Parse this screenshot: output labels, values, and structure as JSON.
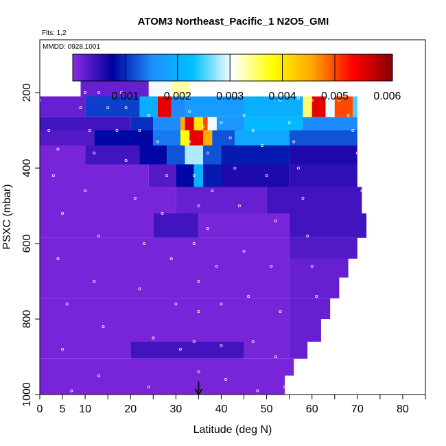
{
  "chart_data": {
    "type": "heatmap",
    "title": "ATOM3 Northeast_Pacific_1 N2O5_GMI",
    "subtitle_flights": "Flts: 1,2",
    "subtitle_dates": "MMDD: 0928,1001",
    "xlabel": "Latitude (deg N)",
    "ylabel": "PSXC (mbar)",
    "xlim": [
      0,
      85
    ],
    "ylim": [
      1000,
      60
    ],
    "x_ticks": [
      0,
      5,
      10,
      20,
      30,
      40,
      50,
      60,
      70,
      80
    ],
    "x_tick_labels": [
      "0",
      "5",
      "10",
      "20",
      "30",
      "40",
      "50",
      "60",
      "70",
      "80"
    ],
    "x_minor_ticks": [
      15,
      25,
      35,
      45,
      55,
      65,
      75,
      85
    ],
    "y_ticks": [
      200,
      400,
      600,
      800,
      1000
    ],
    "y_tick_labels": [
      "200",
      "400",
      "600",
      "800",
      "1000"
    ],
    "colorbar": {
      "min": 0,
      "max": 0.0061,
      "ticks": [
        0.001,
        0.002,
        0.003,
        0.004,
        0.005,
        0.006
      ],
      "tick_labels": [
        "0.001",
        "0.002",
        "0.003",
        "0.004",
        "0.005",
        "0.006"
      ],
      "colors": [
        "#8a2be2",
        "#0000a0",
        "#1e90ff",
        "#00bfff",
        "#ffffff",
        "#ffff00",
        "#ffa500",
        "#ff0000",
        "#8b0000"
      ]
    },
    "marker_latitude": 35,
    "layers": [
      {
        "p_top": 160,
        "p_bot": 210,
        "cells": [
          [
            9,
            27,
            0.0002
          ],
          [
            24,
            29,
            0.003
          ],
          [
            29,
            33,
            0.0033
          ]
        ]
      },
      {
        "p_top": 210,
        "p_bot": 265,
        "cells": [
          [
            0,
            10,
            0.0002
          ],
          [
            10,
            22,
            0.0011
          ],
          [
            22,
            26,
            0.002
          ],
          [
            26,
            29,
            0.0055
          ],
          [
            29,
            32,
            0.0015
          ],
          [
            32,
            45,
            0.0017
          ],
          [
            45,
            58,
            0.002
          ],
          [
            58,
            60,
            0.0035
          ],
          [
            60,
            63,
            0.0055
          ],
          [
            63,
            65,
            0.003
          ],
          [
            65,
            69,
            0.005
          ],
          [
            69,
            70,
            0.0025
          ]
        ]
      },
      {
        "p_top": 265,
        "p_bot": 300,
        "cells": [
          [
            0,
            20,
            0.0004
          ],
          [
            20,
            25,
            0.001
          ],
          [
            25,
            31,
            0.0015
          ],
          [
            31,
            32,
            0.0045
          ],
          [
            32,
            34,
            0.0055
          ],
          [
            34,
            36,
            0.004
          ],
          [
            36,
            37,
            0.005
          ],
          [
            37,
            39,
            0.003
          ],
          [
            39,
            45,
            0.0016
          ],
          [
            45,
            58,
            0.0022
          ],
          [
            58,
            70,
            0.0015
          ]
        ]
      },
      {
        "p_top": 300,
        "p_bot": 340,
        "cells": [
          [
            0,
            12,
            0.0003
          ],
          [
            12,
            25,
            0.0008
          ],
          [
            25,
            31,
            0.0014
          ],
          [
            31,
            33,
            0.0038
          ],
          [
            33,
            36,
            0.0055
          ],
          [
            36,
            38,
            0.0045
          ],
          [
            38,
            43,
            0.0012
          ],
          [
            43,
            55,
            0.0019
          ],
          [
            55,
            70,
            0.0012
          ]
        ]
      },
      {
        "p_top": 340,
        "p_bot": 390,
        "cells": [
          [
            0,
            10,
            0.0001
          ],
          [
            10,
            22,
            0.0004
          ],
          [
            22,
            28,
            0.0008
          ],
          [
            28,
            32,
            0.0012
          ],
          [
            32,
            36,
            0.0028
          ],
          [
            36,
            40,
            0.0012
          ],
          [
            40,
            55,
            0.0009
          ],
          [
            55,
            70,
            0.0006
          ]
        ]
      },
      {
        "p_top": 390,
        "p_bot": 450,
        "cells": [
          [
            0,
            24,
            0.0001
          ],
          [
            24,
            30,
            0.0003
          ],
          [
            30,
            34,
            0.0008
          ],
          [
            34,
            36,
            0.002
          ],
          [
            36,
            40,
            0.0009
          ],
          [
            40,
            55,
            0.0006
          ],
          [
            55,
            70,
            0.0005
          ]
        ]
      },
      {
        "p_top": 450,
        "p_bot": 520,
        "cells": [
          [
            0,
            30,
            0.0001
          ],
          [
            30,
            50,
            0.0002
          ],
          [
            50,
            71,
            0.0004
          ]
        ]
      },
      {
        "p_top": 520,
        "p_bot": 585,
        "cells": [
          [
            0,
            25,
            0.0001
          ],
          [
            25,
            35,
            0.0004
          ],
          [
            35,
            55,
            0.0001
          ],
          [
            55,
            72,
            0.0004
          ]
        ]
      },
      {
        "p_top": 585,
        "p_bot": 640,
        "cells": [
          [
            0,
            55,
            0.0001
          ],
          [
            55,
            70,
            0.0003
          ]
        ]
      },
      {
        "p_top": 640,
        "p_bot": 690,
        "cells": [
          [
            0,
            55,
            0.0001
          ],
          [
            55,
            68,
            0.0002
          ]
        ]
      },
      {
        "p_top": 690,
        "p_bot": 745,
        "cells": [
          [
            0,
            55,
            0.0001
          ],
          [
            55,
            66,
            0.0002
          ]
        ]
      },
      {
        "p_top": 745,
        "p_bot": 800,
        "cells": [
          [
            0,
            55,
            0.0001
          ],
          [
            55,
            64,
            0.0002
          ]
        ]
      },
      {
        "p_top": 800,
        "p_bot": 860,
        "cells": [
          [
            0,
            55,
            0.0001
          ],
          [
            55,
            62,
            0.0002
          ]
        ]
      },
      {
        "p_top": 860,
        "p_bot": 905,
        "cells": [
          [
            0,
            20,
            0.0001
          ],
          [
            20,
            45,
            0.0004
          ],
          [
            45,
            55,
            0.0001
          ],
          [
            55,
            59,
            0.0002
          ]
        ]
      },
      {
        "p_top": 905,
        "p_bot": 950,
        "cells": [
          [
            0,
            56,
            0.0001
          ]
        ]
      },
      {
        "p_top": 950,
        "p_bot": 1000,
        "cells": [
          [
            0,
            54,
            0.0001
          ]
        ]
      }
    ],
    "flight_track": [
      [
        0,
        220
      ],
      [
        2,
        300
      ],
      [
        4,
        350
      ],
      [
        3,
        420
      ],
      [
        5,
        520
      ],
      [
        4,
        640
      ],
      [
        6,
        760
      ],
      [
        5,
        880
      ],
      [
        7,
        990
      ],
      [
        9,
        240
      ],
      [
        11,
        300
      ],
      [
        12,
        360
      ],
      [
        10,
        460
      ],
      [
        13,
        580
      ],
      [
        12,
        700
      ],
      [
        14,
        820
      ],
      [
        13,
        950
      ],
      [
        10,
        200
      ],
      [
        13,
        200
      ],
      [
        15,
        240
      ],
      [
        17,
        300
      ],
      [
        19,
        380
      ],
      [
        21,
        480
      ],
      [
        23,
        600
      ],
      [
        22,
        720
      ],
      [
        25,
        850
      ],
      [
        24,
        980
      ],
      [
        18,
        200
      ],
      [
        19,
        240
      ],
      [
        22,
        300
      ],
      [
        24,
        260
      ],
      [
        26,
        330
      ],
      [
        28,
        420
      ],
      [
        27,
        520
      ],
      [
        29,
        640
      ],
      [
        30,
        760
      ],
      [
        31,
        880
      ],
      [
        33,
        250
      ],
      [
        33,
        330
      ],
      [
        34,
        420
      ],
      [
        35,
        500
      ],
      [
        34,
        600
      ],
      [
        35,
        700
      ],
      [
        35,
        780
      ],
      [
        34,
        860
      ],
      [
        35,
        940
      ],
      [
        35,
        995
      ],
      [
        36,
        290
      ],
      [
        37,
        360
      ],
      [
        38,
        460
      ],
      [
        37,
        560
      ],
      [
        39,
        660
      ],
      [
        40,
        760
      ],
      [
        40,
        870
      ],
      [
        41,
        960
      ],
      [
        40,
        280
      ],
      [
        42,
        320
      ],
      [
        43,
        400
      ],
      [
        44,
        500
      ],
      [
        45,
        620
      ],
      [
        46,
        740
      ],
      [
        47,
        860
      ],
      [
        48,
        990
      ],
      [
        45,
        260
      ],
      [
        47,
        300
      ],
      [
        49,
        340
      ],
      [
        50,
        420
      ],
      [
        52,
        540
      ],
      [
        51,
        660
      ],
      [
        53,
        780
      ],
      [
        52,
        900
      ],
      [
        54,
        980
      ],
      [
        55,
        280
      ],
      [
        56,
        330
      ],
      [
        57,
        400
      ],
      [
        58,
        480
      ],
      [
        59,
        580
      ],
      [
        60,
        660
      ],
      [
        61,
        740
      ],
      [
        53,
        220
      ],
      [
        57,
        215
      ],
      [
        60,
        220
      ],
      [
        63,
        215
      ],
      [
        66,
        220
      ],
      [
        68,
        260
      ],
      [
        69,
        300
      ],
      [
        70,
        360
      ],
      [
        71,
        460
      ]
    ]
  }
}
